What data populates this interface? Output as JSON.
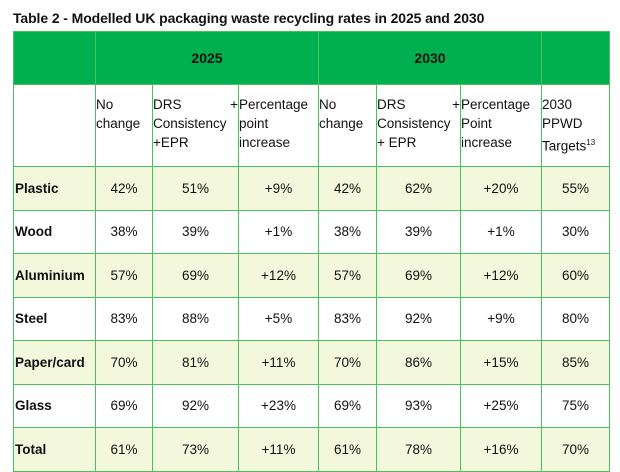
{
  "title": "Table 2 - Modelled UK packaging waste recycling rates in 2025 and 2030",
  "colors": {
    "header_green": "#00b04f",
    "border": "#4cbf5e",
    "alt_row": "#f3f7dc"
  },
  "years": [
    "2025",
    "2030"
  ],
  "subheaders": {
    "no_change": "No change",
    "drs_2025": [
      "DRS",
      "+",
      "Consistency",
      "+EPR"
    ],
    "pp_2025": "Percentage point increase",
    "no_change_2030": "No change",
    "drs_2030": [
      "DRS",
      "+",
      "Consistency",
      "+ EPR"
    ],
    "pp_2030": "Percentage Point increase",
    "targets": "2030 PPWD Targets",
    "targets_footnote": "13"
  },
  "rows": [
    {
      "material": "Plastic",
      "values": [
        "42%",
        "51%",
        "+9%",
        "42%",
        "62%",
        "+20%",
        "55%"
      ]
    },
    {
      "material": "Wood",
      "values": [
        "38%",
        "39%",
        "+1%",
        "38%",
        "39%",
        "+1%",
        "30%"
      ]
    },
    {
      "material": "Aluminium",
      "values": [
        "57%",
        "69%",
        "+12%",
        "57%",
        "69%",
        "+12%",
        "60%"
      ]
    },
    {
      "material": "Steel",
      "values": [
        "83%",
        "88%",
        "+5%",
        "83%",
        "92%",
        "+9%",
        "80%"
      ]
    },
    {
      "material": "Paper/card",
      "values": [
        "70%",
        "81%",
        "+11%",
        "70%",
        "86%",
        "+15%",
        "85%"
      ]
    },
    {
      "material": "Glass",
      "values": [
        "69%",
        "92%",
        "+23%",
        "69%",
        "93%",
        "+25%",
        "75%"
      ]
    },
    {
      "material": "Total",
      "values": [
        "61%",
        "73%",
        "+11%",
        "61%",
        "78%",
        "+16%",
        "70%"
      ]
    }
  ]
}
